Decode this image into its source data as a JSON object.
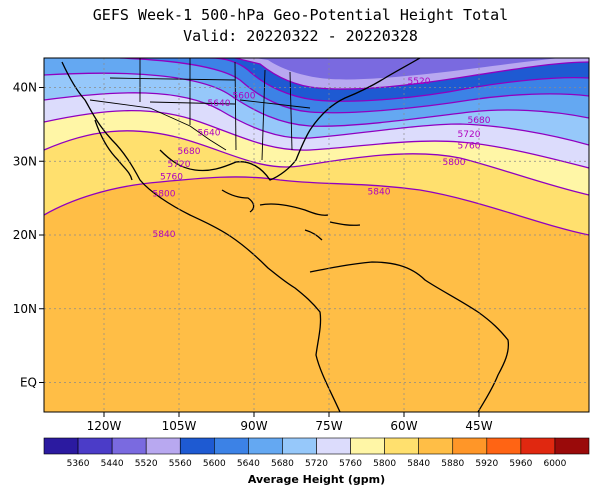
{
  "title": {
    "line1": "GEFS Week-1 500-hPa Geo-Potential Height Total",
    "line2": "Valid: 20220322 - 20220328"
  },
  "map": {
    "lon_range": [
      -132,
      -23
    ],
    "lat_range": [
      -4,
      44
    ],
    "lat_ticks": [
      {
        "lat": 40,
        "label": "40N"
      },
      {
        "lat": 30,
        "label": "30N"
      },
      {
        "lat": 20,
        "label": "20N"
      },
      {
        "lat": 10,
        "label": "10N"
      },
      {
        "lat": 0,
        "label": "EQ"
      }
    ],
    "lon_ticks": [
      {
        "lon": -120,
        "label": "120W"
      },
      {
        "lon": -105,
        "label": "105W"
      },
      {
        "lon": -90,
        "label": "90W"
      },
      {
        "lon": -75,
        "label": "75W"
      },
      {
        "lon": -60,
        "label": "60W"
      },
      {
        "lon": -45,
        "label": "45W"
      }
    ],
    "contour_labels": [
      {
        "text": "5520",
        "lon": -57,
        "lat": 40.5
      },
      {
        "text": "5600",
        "lon": -92,
        "lat": 38.5
      },
      {
        "text": "5640",
        "lon": -97,
        "lat": 37.5
      },
      {
        "text": "5640",
        "lon": -99,
        "lat": 33.5
      },
      {
        "text": "5680",
        "lon": -45,
        "lat": 35.2
      },
      {
        "text": "5720",
        "lon": -47,
        "lat": 33.3
      },
      {
        "text": "5760",
        "lon": -47,
        "lat": 31.7
      },
      {
        "text": "5680",
        "lon": -103,
        "lat": 31.0
      },
      {
        "text": "5720",
        "lon": -105,
        "lat": 29.2
      },
      {
        "text": "5760",
        "lon": -106.5,
        "lat": 27.5
      },
      {
        "text": "5800",
        "lon": -50,
        "lat": 29.5
      },
      {
        "text": "5800",
        "lon": -108,
        "lat": 25.2
      },
      {
        "text": "5840",
        "lon": -65,
        "lat": 25.5
      },
      {
        "text": "5840",
        "lon": -108,
        "lat": 19.7
      }
    ]
  },
  "colorbar": {
    "levels": [
      "5360",
      "5440",
      "5520",
      "5560",
      "5600",
      "5640",
      "5680",
      "5720",
      "5760",
      "5800",
      "5840",
      "5880",
      "5920",
      "5960",
      "6000"
    ],
    "colors": [
      "#2b1aa0",
      "#4b3cc8",
      "#7a6ae0",
      "#b8a8f0",
      "#1e5ad2",
      "#3c82e6",
      "#64a8f2",
      "#96c8fa",
      "#dcdcfc",
      "#fff6a6",
      "#ffe06e",
      "#ffbe46",
      "#ff9628",
      "#ff6414",
      "#e02810",
      "#9a0a0a"
    ],
    "title": "Average Height (gpm)"
  }
}
